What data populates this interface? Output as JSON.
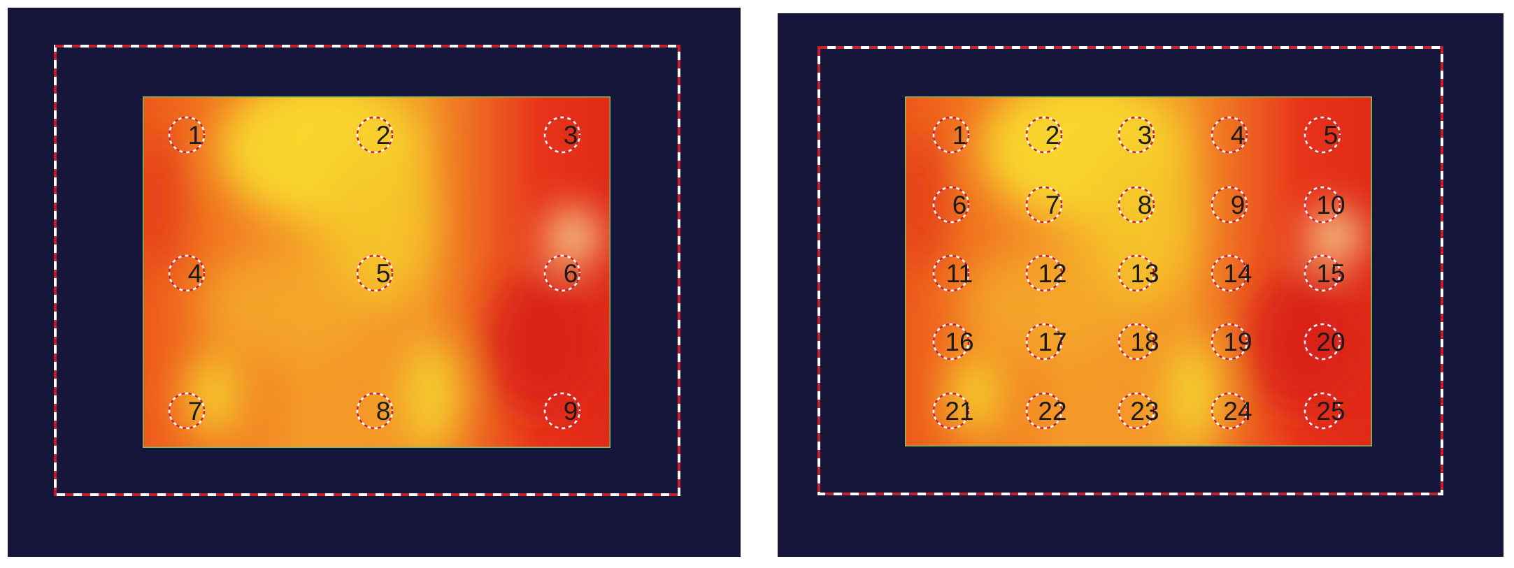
{
  "panels": [
    {
      "labels": [
        "1",
        "2",
        "3",
        "4",
        "5",
        "6",
        "7",
        "8",
        "9"
      ]
    },
    {
      "labels": [
        "1",
        "2",
        "3",
        "4",
        "5",
        "6",
        "7",
        "8",
        "9",
        "10",
        "11",
        "12",
        "13",
        "14",
        "15",
        "16",
        "17",
        "18",
        "19",
        "20",
        "21",
        "22",
        "23",
        "24",
        "25"
      ]
    }
  ]
}
